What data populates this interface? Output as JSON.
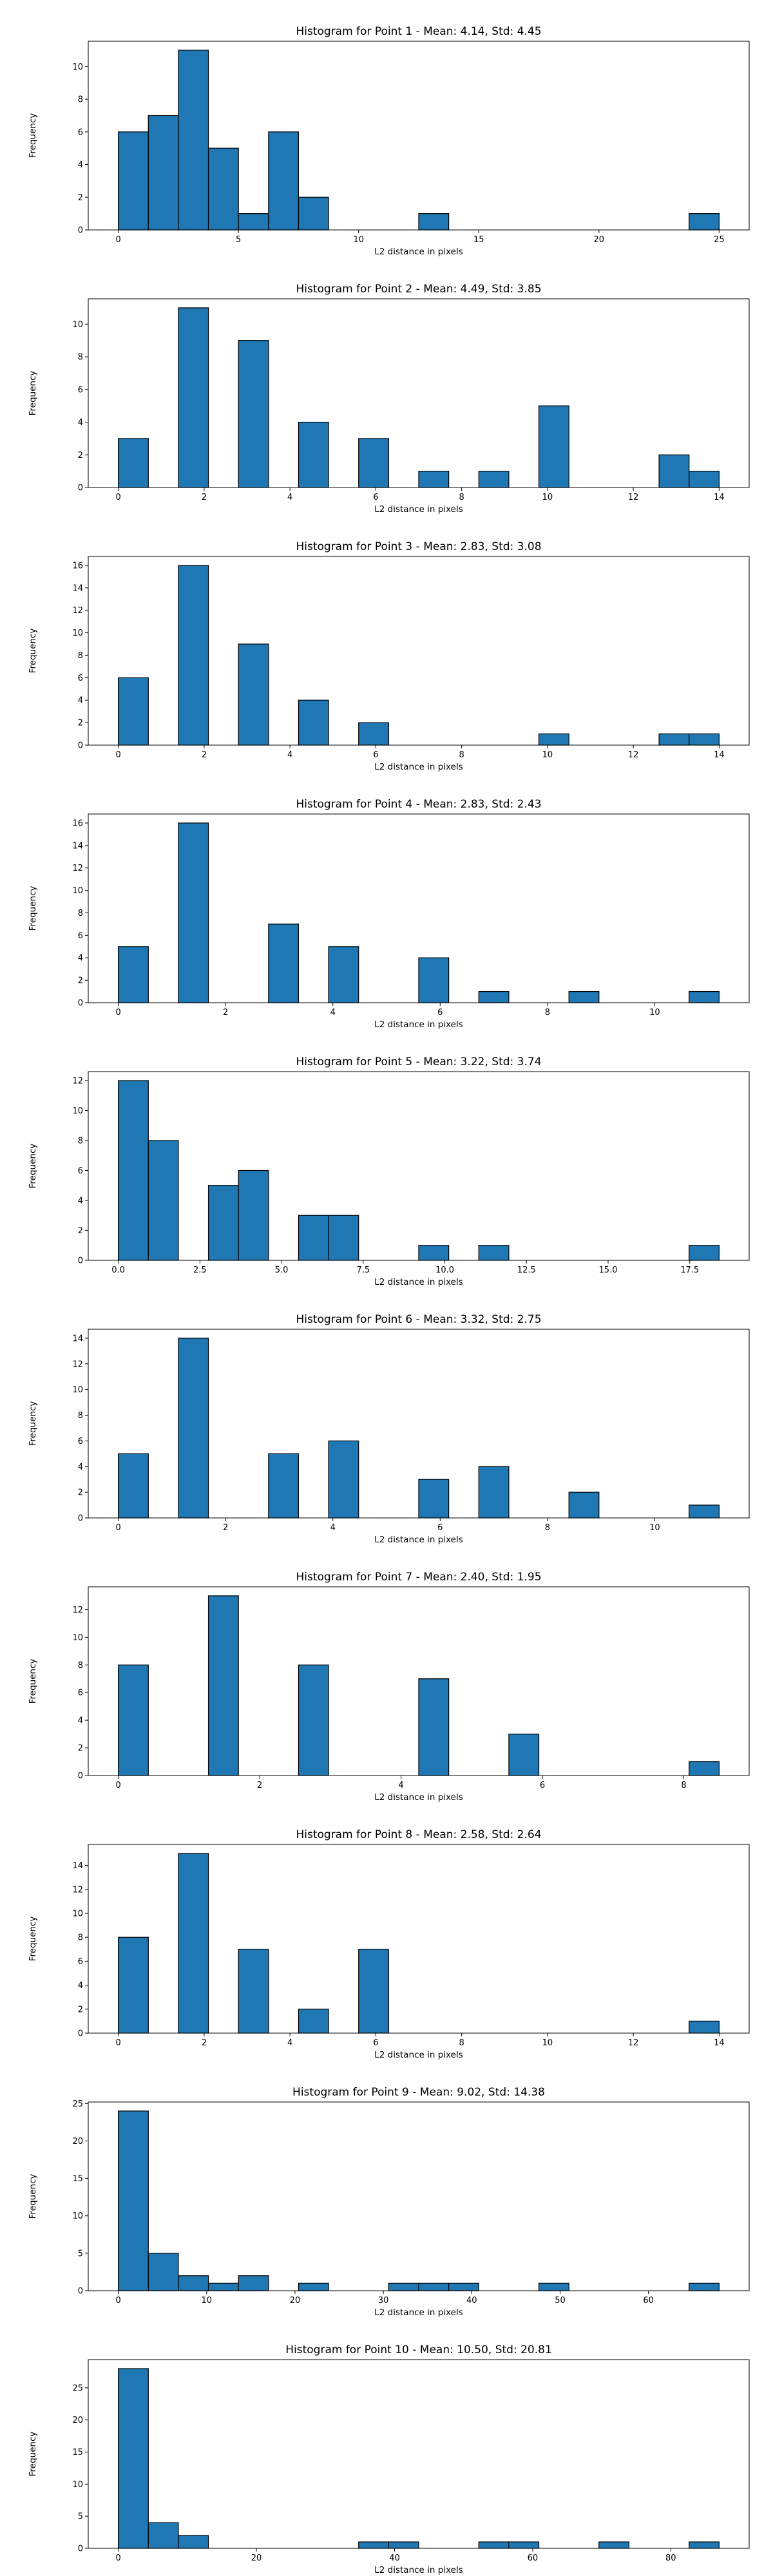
{
  "chart_data": [
    {
      "type": "bar",
      "title": "Histogram for Point 1 - Mean: 4.14, Std: 4.45",
      "xlabel": "L2 distance in pixels",
      "ylabel": "Frequency",
      "xlim": [
        -1.25,
        26.25
      ],
      "ylim": [
        0,
        11.55
      ],
      "bin_width": 1.25,
      "bin_starts": [
        0,
        1.25,
        2.5,
        3.75,
        5,
        6.25,
        7.5,
        12.5,
        23.75
      ],
      "values": [
        6,
        7,
        11,
        5,
        1,
        6,
        2,
        1,
        1
      ],
      "xticks": [
        0,
        5,
        10,
        15,
        20,
        25
      ],
      "xtick_labels": [
        "0",
        "5",
        "10",
        "15",
        "20",
        "25"
      ],
      "yticks": [
        0,
        2,
        4,
        6,
        8,
        10
      ],
      "ytick_labels": [
        "0",
        "2",
        "4",
        "6",
        "8",
        "10"
      ],
      "bar_color": "#1f77b4",
      "edge_color": "#000000"
    },
    {
      "type": "bar",
      "title": "Histogram for Point 2 - Mean: 4.49, Std: 3.85",
      "xlabel": "L2 distance in pixels",
      "ylabel": "Frequency",
      "xlim": [
        -0.7,
        14.7
      ],
      "ylim": [
        0,
        11.55
      ],
      "bin_width": 0.7,
      "bin_starts": [
        0,
        1.4,
        2.8,
        4.2,
        5.6,
        7.0,
        8.4,
        9.8,
        12.6,
        13.3
      ],
      "values": [
        3,
        11,
        9,
        4,
        3,
        1,
        1,
        5,
        2,
        1
      ],
      "xticks": [
        0,
        2,
        4,
        6,
        8,
        10,
        12,
        14
      ],
      "xtick_labels": [
        "0",
        "2",
        "4",
        "6",
        "8",
        "10",
        "12",
        "14"
      ],
      "yticks": [
        0,
        2,
        4,
        6,
        8,
        10
      ],
      "ytick_labels": [
        "0",
        "2",
        "4",
        "6",
        "8",
        "10"
      ],
      "bar_color": "#1f77b4",
      "edge_color": "#000000"
    },
    {
      "type": "bar",
      "title": "Histogram for Point 3 - Mean: 2.83, Std: 3.08",
      "xlabel": "L2 distance in pixels",
      "ylabel": "Frequency",
      "xlim": [
        -0.7,
        14.7
      ],
      "ylim": [
        0,
        16.8
      ],
      "bin_width": 0.7,
      "bin_starts": [
        0,
        1.4,
        2.8,
        4.2,
        5.6,
        9.8,
        12.6,
        13.3
      ],
      "values": [
        6,
        16,
        9,
        4,
        2,
        1,
        1,
        1
      ],
      "xticks": [
        0,
        2,
        4,
        6,
        8,
        10,
        12,
        14
      ],
      "xtick_labels": [
        "0",
        "2",
        "4",
        "6",
        "8",
        "10",
        "12",
        "14"
      ],
      "yticks": [
        0,
        2,
        4,
        6,
        8,
        10,
        12,
        14,
        16
      ],
      "ytick_labels": [
        "0",
        "2",
        "4",
        "6",
        "8",
        "10",
        "12",
        "14",
        "16"
      ],
      "bar_color": "#1f77b4",
      "edge_color": "#000000"
    },
    {
      "type": "bar",
      "title": "Histogram for Point 4 - Mean: 2.83, Std: 2.43",
      "xlabel": "L2 distance in pixels",
      "ylabel": "Frequency",
      "xlim": [
        -0.56,
        11.76
      ],
      "ylim": [
        0,
        16.8
      ],
      "bin_width": 0.56,
      "bin_starts": [
        0,
        1.12,
        2.8,
        3.92,
        5.6,
        6.72,
        8.4,
        10.64
      ],
      "values": [
        5,
        16,
        7,
        5,
        4,
        1,
        1,
        1
      ],
      "xticks": [
        0,
        2,
        4,
        6,
        8,
        10
      ],
      "xtick_labels": [
        "0",
        "2",
        "4",
        "6",
        "8",
        "10"
      ],
      "yticks": [
        0,
        2,
        4,
        6,
        8,
        10,
        12,
        14,
        16
      ],
      "ytick_labels": [
        "0",
        "2",
        "4",
        "6",
        "8",
        "10",
        "12",
        "14",
        "16"
      ],
      "bar_color": "#1f77b4",
      "edge_color": "#000000"
    },
    {
      "type": "bar",
      "title": "Histogram for Point 5 - Mean: 3.22, Std: 3.74",
      "xlabel": "L2 distance in pixels",
      "ylabel": "Frequency",
      "xlim": [
        -0.92,
        19.32
      ],
      "ylim": [
        0,
        12.6
      ],
      "bin_width": 0.92,
      "bin_starts": [
        0,
        0.92,
        2.76,
        3.68,
        5.52,
        6.44,
        9.2,
        11.04,
        17.48
      ],
      "values": [
        12,
        8,
        5,
        6,
        3,
        3,
        1,
        1,
        1
      ],
      "xticks": [
        0,
        2.5,
        5,
        7.5,
        10,
        12.5,
        15,
        17.5
      ],
      "xtick_labels": [
        "0.0",
        "2.5",
        "5.0",
        "7.5",
        "10.0",
        "12.5",
        "15.0",
        "17.5"
      ],
      "yticks": [
        0,
        2,
        4,
        6,
        8,
        10,
        12
      ],
      "ytick_labels": [
        "0",
        "2",
        "4",
        "6",
        "8",
        "10",
        "12"
      ],
      "bar_color": "#1f77b4",
      "edge_color": "#000000"
    },
    {
      "type": "bar",
      "title": "Histogram for Point 6 - Mean: 3.32, Std: 2.75",
      "xlabel": "L2 distance in pixels",
      "ylabel": "Frequency",
      "xlim": [
        -0.56,
        11.76
      ],
      "ylim": [
        0,
        14.7
      ],
      "bin_width": 0.56,
      "bin_starts": [
        0,
        1.12,
        2.8,
        3.92,
        5.6,
        6.72,
        8.4,
        10.64
      ],
      "values": [
        5,
        14,
        5,
        6,
        3,
        4,
        2,
        1
      ],
      "xticks": [
        0,
        2,
        4,
        6,
        8,
        10
      ],
      "xtick_labels": [
        "0",
        "2",
        "4",
        "6",
        "8",
        "10"
      ],
      "yticks": [
        0,
        2,
        4,
        6,
        8,
        10,
        12,
        14
      ],
      "ytick_labels": [
        "0",
        "2",
        "4",
        "6",
        "8",
        "10",
        "12",
        "14"
      ],
      "bar_color": "#1f77b4",
      "edge_color": "#000000"
    },
    {
      "type": "bar",
      "title": "Histogram for Point 7 - Mean: 2.40, Std: 1.95",
      "xlabel": "L2 distance in pixels",
      "ylabel": "Frequency",
      "xlim": [
        -0.425,
        8.925
      ],
      "ylim": [
        0,
        13.65
      ],
      "bin_width": 0.425,
      "bin_starts": [
        0,
        1.275,
        2.55,
        4.25,
        5.525,
        8.075
      ],
      "values": [
        8,
        13,
        8,
        7,
        3,
        1
      ],
      "xticks": [
        0,
        2,
        4,
        6,
        8
      ],
      "xtick_labels": [
        "0",
        "2",
        "4",
        "6",
        "8"
      ],
      "yticks": [
        0,
        2,
        4,
        6,
        8,
        10,
        12
      ],
      "ytick_labels": [
        "0",
        "2",
        "4",
        "6",
        "8",
        "10",
        "12"
      ],
      "bar_color": "#1f77b4",
      "edge_color": "#000000"
    },
    {
      "type": "bar",
      "title": "Histogram for Point 8 - Mean: 2.58, Std: 2.64",
      "xlabel": "L2 distance in pixels",
      "ylabel": "Frequency",
      "xlim": [
        -0.7,
        14.7
      ],
      "ylim": [
        0,
        15.75
      ],
      "bin_width": 0.7,
      "bin_starts": [
        0,
        1.4,
        2.8,
        4.2,
        5.6,
        13.3
      ],
      "values": [
        8,
        15,
        7,
        2,
        7,
        1
      ],
      "xticks": [
        0,
        2,
        4,
        6,
        8,
        10,
        12,
        14
      ],
      "xtick_labels": [
        "0",
        "2",
        "4",
        "6",
        "8",
        "10",
        "12",
        "14"
      ],
      "yticks": [
        0,
        2,
        4,
        6,
        8,
        10,
        12,
        14
      ],
      "ytick_labels": [
        "0",
        "2",
        "4",
        "6",
        "8",
        "10",
        "12",
        "14"
      ],
      "bar_color": "#1f77b4",
      "edge_color": "#000000"
    },
    {
      "type": "bar",
      "title": "Histogram for Point 9 - Mean: 9.02, Std: 14.38",
      "xlabel": "L2 distance in pixels",
      "ylabel": "Frequency",
      "xlim": [
        -3.4,
        71.4
      ],
      "ylim": [
        0,
        25.2
      ],
      "bin_width": 3.4,
      "bin_starts": [
        0,
        3.4,
        6.8,
        10.2,
        13.6,
        20.4,
        30.6,
        34.0,
        37.4,
        47.6,
        64.6
      ],
      "values": [
        24,
        5,
        2,
        1,
        2,
        1,
        1,
        1,
        1,
        1,
        1
      ],
      "xticks": [
        0,
        10,
        20,
        30,
        40,
        50,
        60
      ],
      "xtick_labels": [
        "0",
        "10",
        "20",
        "30",
        "40",
        "50",
        "60"
      ],
      "yticks": [
        0,
        5,
        10,
        15,
        20,
        25
      ],
      "ytick_labels": [
        "0",
        "5",
        "10",
        "15",
        "20",
        "25"
      ],
      "bar_color": "#1f77b4",
      "edge_color": "#000000"
    },
    {
      "type": "bar",
      "title": "Histogram for Point 10 - Mean: 10.50, Std: 20.81",
      "xlabel": "L2 distance in pixels",
      "ylabel": "Frequency",
      "xlim": [
        -4.35,
        91.35
      ],
      "ylim": [
        0,
        29.4
      ],
      "bin_width": 4.35,
      "bin_starts": [
        0,
        4.35,
        8.7,
        34.8,
        39.15,
        52.2,
        56.55,
        69.6,
        82.65
      ],
      "values": [
        28,
        4,
        2,
        1,
        1,
        1,
        1,
        1,
        1
      ],
      "xticks": [
        0,
        20,
        40,
        60,
        80
      ],
      "xtick_labels": [
        "0",
        "20",
        "40",
        "60",
        "80"
      ],
      "yticks": [
        0,
        5,
        10,
        15,
        20,
        25
      ],
      "ytick_labels": [
        "0",
        "5",
        "10",
        "15",
        "20",
        "25"
      ],
      "bar_color": "#1f77b4",
      "edge_color": "#000000"
    }
  ]
}
